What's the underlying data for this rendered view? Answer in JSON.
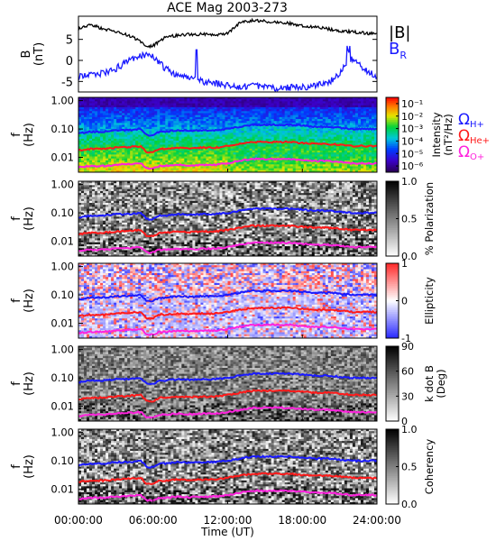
{
  "title": "ACE Mag 2003-273",
  "colors": {
    "btot": "#000000",
    "br": "#1a1aff",
    "omega_h": "#1a1aff",
    "omega_he": "#ff1a1a",
    "omega_o": "#ff22dd",
    "axis": "#000000"
  },
  "x_axis": {
    "title": "Time (UT)",
    "tick_labels": [
      "00:00:00",
      "06:00:00",
      "12:00:00",
      "18:00:00",
      "24:00:00"
    ],
    "range_hours": [
      0,
      24
    ]
  },
  "mag_panel": {
    "ylabel": [
      "B",
      "(nT)"
    ],
    "yticks": [
      "5",
      "0",
      "-5"
    ],
    "ytick_values": [
      5,
      0,
      -5
    ],
    "ylim": [
      -7.5,
      10.5
    ],
    "legend": {
      "btot": "|B|",
      "br": "B",
      "br_sub": "R"
    }
  },
  "freq_axis": {
    "ylabel": [
      "f",
      "(Hz)"
    ],
    "ticks": [
      "1.00",
      "0.10",
      "0.01"
    ],
    "tick_values": [
      1.0,
      0.1,
      0.01
    ],
    "range_hz": [
      0.003,
      1.3
    ]
  },
  "spectro_panels": [
    {
      "id": "intensity",
      "colorbar_label": [
        "Intensity",
        "(nT²/Hz)"
      ],
      "colorbar_ticks": [
        "10⁻¹",
        "10⁻²",
        "10⁻³",
        "10⁻⁴",
        "10⁻⁵",
        "10⁻⁶"
      ],
      "colorbar_tick_values": [
        -1,
        -2,
        -3,
        -4,
        -5,
        -6
      ],
      "colorbar_range": [
        -6.5,
        -0.5
      ],
      "legend": [
        {
          "text": "Ω",
          "sub": "H+",
          "color": "#1a1aff"
        },
        {
          "text": "Ω",
          "sub": "He+",
          "color": "#ff1a1a"
        },
        {
          "text": "Ω",
          "sub": "O+",
          "color": "#ff22dd"
        }
      ]
    },
    {
      "id": "polarization",
      "colorbar_label": [
        "% Polarization"
      ],
      "colorbar_ticks": [
        "1.0",
        "0.5",
        "0.0"
      ],
      "colorbar_tick_values": [
        1.0,
        0.5,
        0.0
      ],
      "colorbar_range": [
        0,
        1
      ]
    },
    {
      "id": "ellipticity",
      "colorbar_label": [
        "Ellipticity"
      ],
      "colorbar_ticks": [
        "1",
        "0",
        "-1"
      ],
      "colorbar_tick_values": [
        1,
        0,
        -1
      ],
      "colorbar_range": [
        -1,
        1
      ]
    },
    {
      "id": "kdotb",
      "colorbar_label": [
        "k dot B",
        "(Deg)"
      ],
      "colorbar_ticks": [
        "90",
        "60",
        "30",
        "0"
      ],
      "colorbar_tick_values": [
        90,
        60,
        30,
        0
      ],
      "colorbar_range": [
        0,
        90
      ]
    },
    {
      "id": "coherency",
      "colorbar_label": [
        "Coherency"
      ],
      "colorbar_ticks": [
        "1.0",
        "0.5",
        "0.0"
      ],
      "colorbar_tick_values": [
        1.0,
        0.5,
        0.0
      ],
      "colorbar_range": [
        0,
        1
      ]
    }
  ],
  "chart_data": {
    "type": "line",
    "title": "ACE Mag 2003-273",
    "xlabel": "Time (UT)",
    "x_hours": [
      0,
      1,
      2,
      3,
      4,
      5,
      5.5,
      6,
      6.5,
      7,
      8,
      9,
      10,
      11,
      12,
      13,
      14,
      15,
      16,
      17,
      18,
      19,
      20,
      21,
      22,
      23,
      24
    ],
    "series": [
      {
        "name": "|B|",
        "values": [
          7.5,
          8.5,
          7.5,
          6.8,
          6.0,
          4.5,
          3.0,
          3.5,
          4.5,
          5.5,
          6.0,
          6.2,
          6.3,
          6.0,
          6.5,
          9.0,
          9.5,
          9.3,
          9.0,
          8.8,
          8.2,
          8.0,
          7.5,
          7.0,
          6.8,
          6.5,
          6.3
        ]
      },
      {
        "name": "B",
        "values": [
          -4.0,
          -3.5,
          -3.0,
          -2.0,
          0.0,
          1.0,
          1.5,
          1.0,
          -0.5,
          -2.0,
          -3.5,
          -4.5,
          -5.0,
          -5.5,
          -6.0,
          -6.2,
          -6.0,
          -6.2,
          -6.5,
          -6.5,
          -6.3,
          -6.0,
          -5.5,
          -3.0,
          0.5,
          -2.0,
          -4.0
        ]
      },
      {
        "name": "Ω",
        "values": [
          0.07,
          0.08,
          0.08,
          0.09,
          0.09,
          0.1,
          0.06,
          0.06,
          0.08,
          0.08,
          0.09,
          0.085,
          0.09,
          0.09,
          0.1,
          0.12,
          0.14,
          0.14,
          0.14,
          0.14,
          0.13,
          0.12,
          0.12,
          0.11,
          0.1,
          0.1,
          0.1
        ]
      },
      {
        "name": "Ω",
        "values": [
          0.018,
          0.02,
          0.02,
          0.022,
          0.023,
          0.025,
          0.015,
          0.015,
          0.02,
          0.02,
          0.022,
          0.021,
          0.022,
          0.022,
          0.025,
          0.03,
          0.035,
          0.035,
          0.035,
          0.035,
          0.032,
          0.03,
          0.03,
          0.028,
          0.025,
          0.025,
          0.025
        ]
      },
      {
        "name": "Ω",
        "values": [
          0.0045,
          0.005,
          0.005,
          0.0055,
          0.0058,
          0.0062,
          0.004,
          0.004,
          0.005,
          0.005,
          0.0055,
          0.0052,
          0.0055,
          0.0055,
          0.0062,
          0.0075,
          0.0088,
          0.0088,
          0.0088,
          0.0088,
          0.008,
          0.0075,
          0.0075,
          0.007,
          0.0062,
          0.0062,
          0.0062
        ]
      }
    ],
    "ylabel": "B (nT)",
    "grid": false
  }
}
